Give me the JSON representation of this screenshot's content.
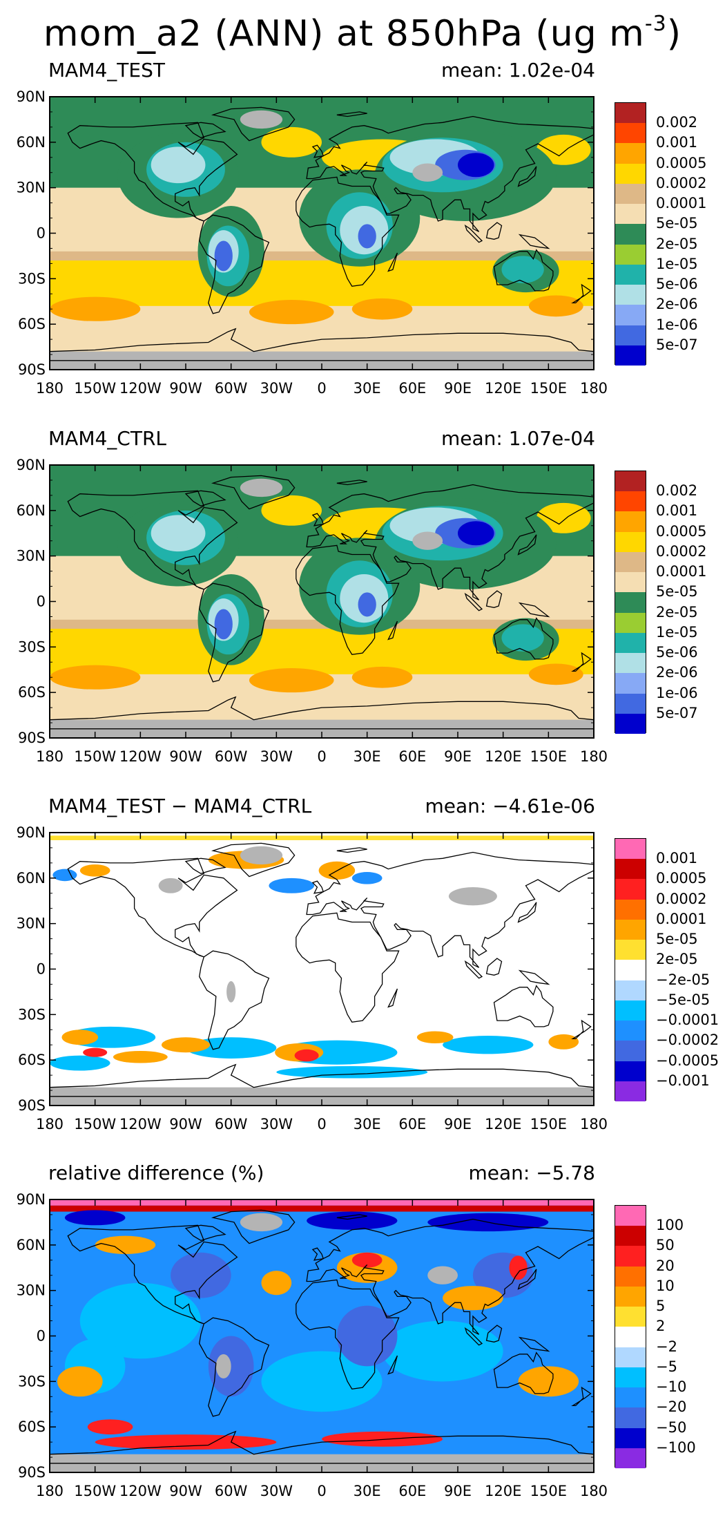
{
  "title": {
    "text": "mom_a2 (ANN) at 850hPa (ug m",
    "sup": "-3",
    "close": ")"
  },
  "lat_labels": [
    "90N",
    "60N",
    "30N",
    "0",
    "30S",
    "60S",
    "90S"
  ],
  "lon_labels": [
    "180",
    "150W",
    "120W",
    "90W",
    "60W",
    "30W",
    "0",
    "30E",
    "60E",
    "90E",
    "120E",
    "150E",
    "180"
  ],
  "panels": [
    {
      "label": "MAM4_TEST",
      "mean": "mean: 1.02e-04",
      "kind": "abs",
      "legend": {
        "colors": [
          "#b22222",
          "#ff4500",
          "#ffa500",
          "#ffd700",
          "#deb887",
          "#f5deb3",
          "#2e8b57",
          "#9acd32",
          "#20b2aa",
          "#b0e0e6",
          "#87a9f5",
          "#4169e1",
          "#0000cd"
        ],
        "labels": [
          "0.002",
          "0.001",
          "0.0005",
          "0.0002",
          "0.0001",
          "5e-05",
          "2e-05",
          "1e-05",
          "5e-06",
          "2e-06",
          "1e-06",
          "5e-07"
        ]
      }
    },
    {
      "label": "MAM4_CTRL",
      "mean": "mean: 1.07e-04",
      "kind": "abs",
      "legend": {
        "colors": [
          "#b22222",
          "#ff4500",
          "#ffa500",
          "#ffd700",
          "#deb887",
          "#f5deb3",
          "#2e8b57",
          "#9acd32",
          "#20b2aa",
          "#b0e0e6",
          "#87a9f5",
          "#4169e1",
          "#0000cd"
        ],
        "labels": [
          "0.002",
          "0.001",
          "0.0005",
          "0.0002",
          "0.0001",
          "5e-05",
          "2e-05",
          "1e-05",
          "5e-06",
          "2e-06",
          "1e-06",
          "5e-07"
        ]
      }
    },
    {
      "label": "MAM4_TEST − MAM4_CTRL",
      "mean": "mean: −4.61e-06",
      "kind": "diff",
      "legend": {
        "colors": [
          "#ff69b4",
          "#cc0000",
          "#ff2020",
          "#ff7000",
          "#ffa500",
          "#ffe030",
          "#ffffff",
          "#b0d8ff",
          "#00bfff",
          "#1e90ff",
          "#4169e1",
          "#0000cd",
          "#8a2be2"
        ],
        "labels": [
          "0.001",
          "0.0005",
          "0.0002",
          "0.0001",
          "5e-05",
          "2e-05",
          "−2e-05",
          "−5e-05",
          "−0.0001",
          "−0.0002",
          "−0.0005",
          "−0.001"
        ]
      }
    },
    {
      "label": "relative difference (%)",
      "mean": "mean: −5.78",
      "kind": "rel",
      "legend": {
        "colors": [
          "#ff69b4",
          "#cc0000",
          "#ff2020",
          "#ff7000",
          "#ffa500",
          "#ffe030",
          "#ffffff",
          "#b0d8ff",
          "#00bfff",
          "#1e90ff",
          "#4169e1",
          "#0000cd",
          "#8a2be2"
        ],
        "labels": [
          "100",
          "50",
          "20",
          "10",
          "5",
          "2",
          "−2",
          "−5",
          "−10",
          "−20",
          "−50",
          "−100"
        ]
      }
    }
  ]
}
